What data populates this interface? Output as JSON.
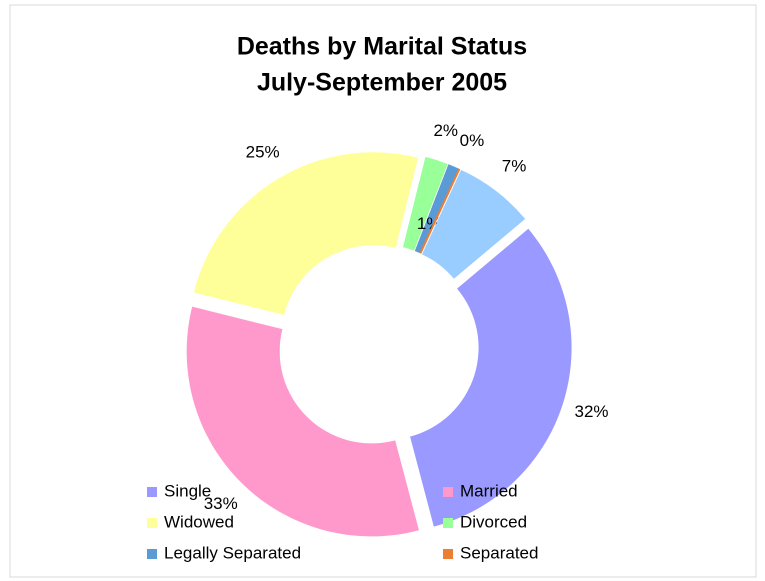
{
  "chart_data": {
    "type": "donut",
    "title": "Deaths by Marital Status",
    "subtitle": "July-September 2005",
    "categories": [
      "Single",
      "Married",
      "Widowed",
      "Divorced",
      "Legally Separated",
      "Separated",
      null
    ],
    "values": [
      32,
      33,
      25,
      2,
      1,
      0,
      7
    ],
    "value_labels": [
      "32%",
      "33%",
      "25%",
      "2%",
      "1%",
      "0%",
      "7%"
    ],
    "colors": [
      "#9999ff",
      "#ff99cc",
      "#ffff99",
      "#99ff99",
      "#5b9bd5",
      "#ed7d31",
      "#99ccff"
    ],
    "legend": "bottom"
  }
}
